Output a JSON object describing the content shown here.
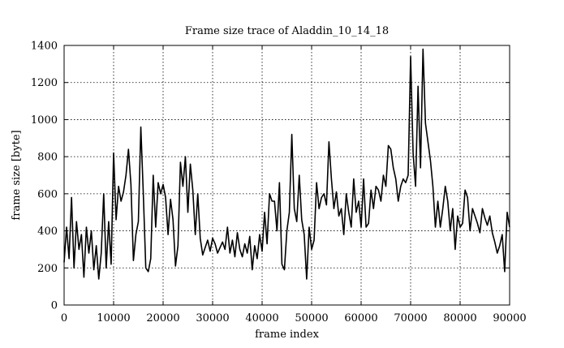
{
  "chart_data": {
    "type": "line",
    "title": "Frame size trace of Aladdin_10_14_18",
    "xlabel": "frame index",
    "ylabel": "frame size [byte]",
    "xlim": [
      0,
      90000
    ],
    "ylim": [
      0,
      1400
    ],
    "xticks": [
      0,
      10000,
      20000,
      30000,
      40000,
      50000,
      60000,
      70000,
      80000,
      90000
    ],
    "yticks": [
      0,
      200,
      400,
      600,
      800,
      1000,
      1200,
      1400
    ],
    "grid": true,
    "series": [
      {
        "x": [
          0,
          500,
          1000,
          1500,
          2000,
          2500,
          3000,
          3500,
          4000,
          4500,
          5000,
          5500,
          6000,
          6500,
          7000,
          7500,
          8000,
          8500,
          9000,
          9500,
          10000,
          10500,
          11000,
          11500,
          12000,
          12500,
          13000,
          13500,
          14000,
          14500,
          15000,
          15500,
          16000,
          16500,
          17000,
          17500,
          18000,
          18500,
          19000,
          19500,
          20000,
          20500,
          21000,
          21500,
          22000,
          22500,
          23000,
          23500,
          24000,
          24500,
          25000,
          25500,
          26000,
          26500,
          27000,
          27500,
          28000,
          28500,
          29000,
          29500,
          30000,
          30500,
          31000,
          31500,
          32000,
          32500,
          33000,
          33500,
          34000,
          34500,
          35000,
          35500,
          36000,
          36500,
          37000,
          37500,
          38000,
          38500,
          39000,
          39500,
          40000,
          40500,
          41000,
          41500,
          42000,
          42500,
          43000,
          43500,
          44000,
          44500,
          45000,
          45500,
          46000,
          46500,
          47000,
          47500,
          48000,
          48500,
          49000,
          49500,
          50000,
          50500,
          51000,
          51500,
          52000,
          52500,
          53000,
          53500,
          54000,
          54500,
          55000,
          55500,
          56000,
          56500,
          57000,
          57500,
          58000,
          58500,
          59000,
          59500,
          60000,
          60500,
          61000,
          61500,
          62000,
          62500,
          63000,
          63500,
          64000,
          64500,
          65000,
          65500,
          66000,
          66500,
          67000,
          67500,
          68000,
          68500,
          69000,
          69500,
          70000,
          70500,
          71000,
          71500,
          72000,
          72500,
          73000,
          73500,
          74000,
          74500,
          75000,
          75500,
          76000,
          76500,
          77000,
          77500,
          78000,
          78500,
          79000,
          79500,
          80000,
          80500,
          81000,
          81500,
          82000,
          82500,
          83000,
          83500,
          84000,
          84500,
          85000,
          85500,
          86000,
          86500,
          87000,
          87500,
          88000,
          88500,
          89000,
          89500,
          90000
        ],
        "values": [
          230,
          420,
          250,
          580,
          200,
          450,
          300,
          380,
          150,
          420,
          280,
          400,
          190,
          320,
          140,
          280,
          600,
          200,
          450,
          220,
          820,
          460,
          640,
          560,
          610,
          700,
          840,
          650,
          240,
          380,
          450,
          960,
          600,
          200,
          180,
          250,
          700,
          420,
          660,
          600,
          650,
          580,
          380,
          570,
          460,
          210,
          320,
          770,
          640,
          800,
          500,
          760,
          620,
          380,
          600,
          360,
          270,
          310,
          350,
          290,
          360,
          330,
          280,
          310,
          340,
          300,
          420,
          280,
          350,
          260,
          390,
          300,
          260,
          330,
          280,
          370,
          190,
          320,
          250,
          380,
          290,
          500,
          330,
          600,
          560,
          560,
          400,
          660,
          220,
          190,
          400,
          500,
          920,
          520,
          450,
          700,
          460,
          380,
          140,
          420,
          300,
          350,
          660,
          520,
          580,
          600,
          540,
          880,
          680,
          520,
          610,
          480,
          520,
          380,
          600,
          500,
          420,
          680,
          500,
          560,
          420,
          680,
          420,
          440,
          620,
          520,
          640,
          620,
          560,
          700,
          640,
          860,
          840,
          740,
          680,
          560,
          640,
          680,
          660,
          700,
          1340,
          820,
          640,
          1180,
          740,
          1380,
          980,
          880,
          780,
          640,
          420,
          560,
          420,
          520,
          640,
          560,
          400,
          520,
          300,
          480,
          420,
          440,
          620,
          580,
          400,
          520,
          480,
          440,
          390,
          520,
          470,
          430,
          480,
          390,
          340,
          280,
          320,
          380,
          180,
          500,
          420
        ]
      }
    ]
  }
}
